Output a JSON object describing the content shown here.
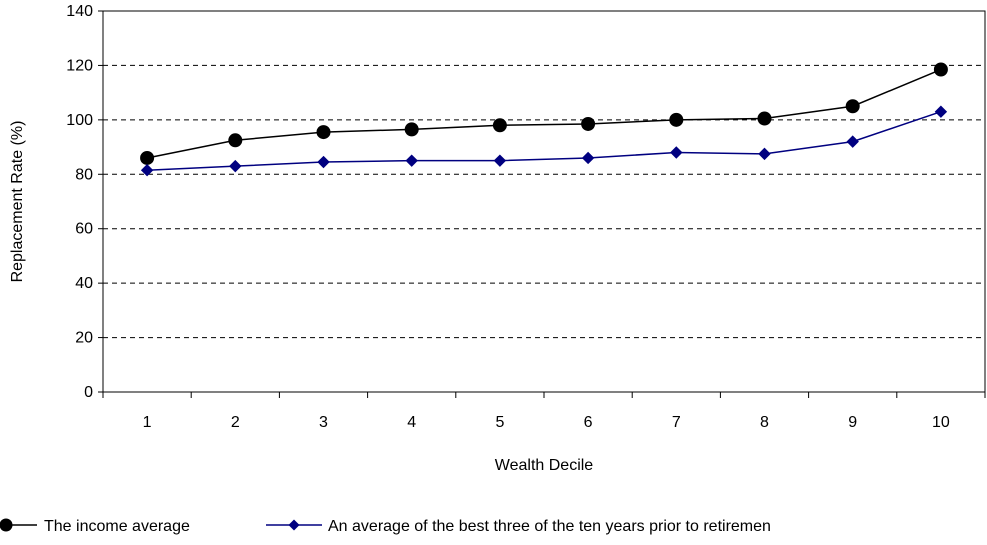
{
  "chart_data": {
    "type": "line",
    "title": "",
    "xlabel": "Wealth Decile",
    "ylabel": "Replacement Rate (%)",
    "categories": [
      "1",
      "2",
      "3",
      "4",
      "5",
      "6",
      "7",
      "8",
      "9",
      "10"
    ],
    "ylim": [
      0,
      140
    ],
    "yticks": [
      "0",
      "20",
      "40",
      "60",
      "80",
      "100",
      "120",
      "140"
    ],
    "grid": "horizontal dashed",
    "legend_position": "bottom",
    "series": [
      {
        "name": "The income average",
        "values": [
          86,
          92.5,
          95.5,
          96.5,
          98,
          98.5,
          100,
          100.5,
          105,
          118.5
        ],
        "color": "#000000",
        "marker": "circle"
      },
      {
        "name": "An average of the best three of the ten years prior to retiremen",
        "values": [
          81.5,
          83,
          84.5,
          85,
          85,
          86,
          88,
          87.5,
          92,
          103
        ],
        "color": "#000080",
        "marker": "diamond"
      }
    ]
  }
}
